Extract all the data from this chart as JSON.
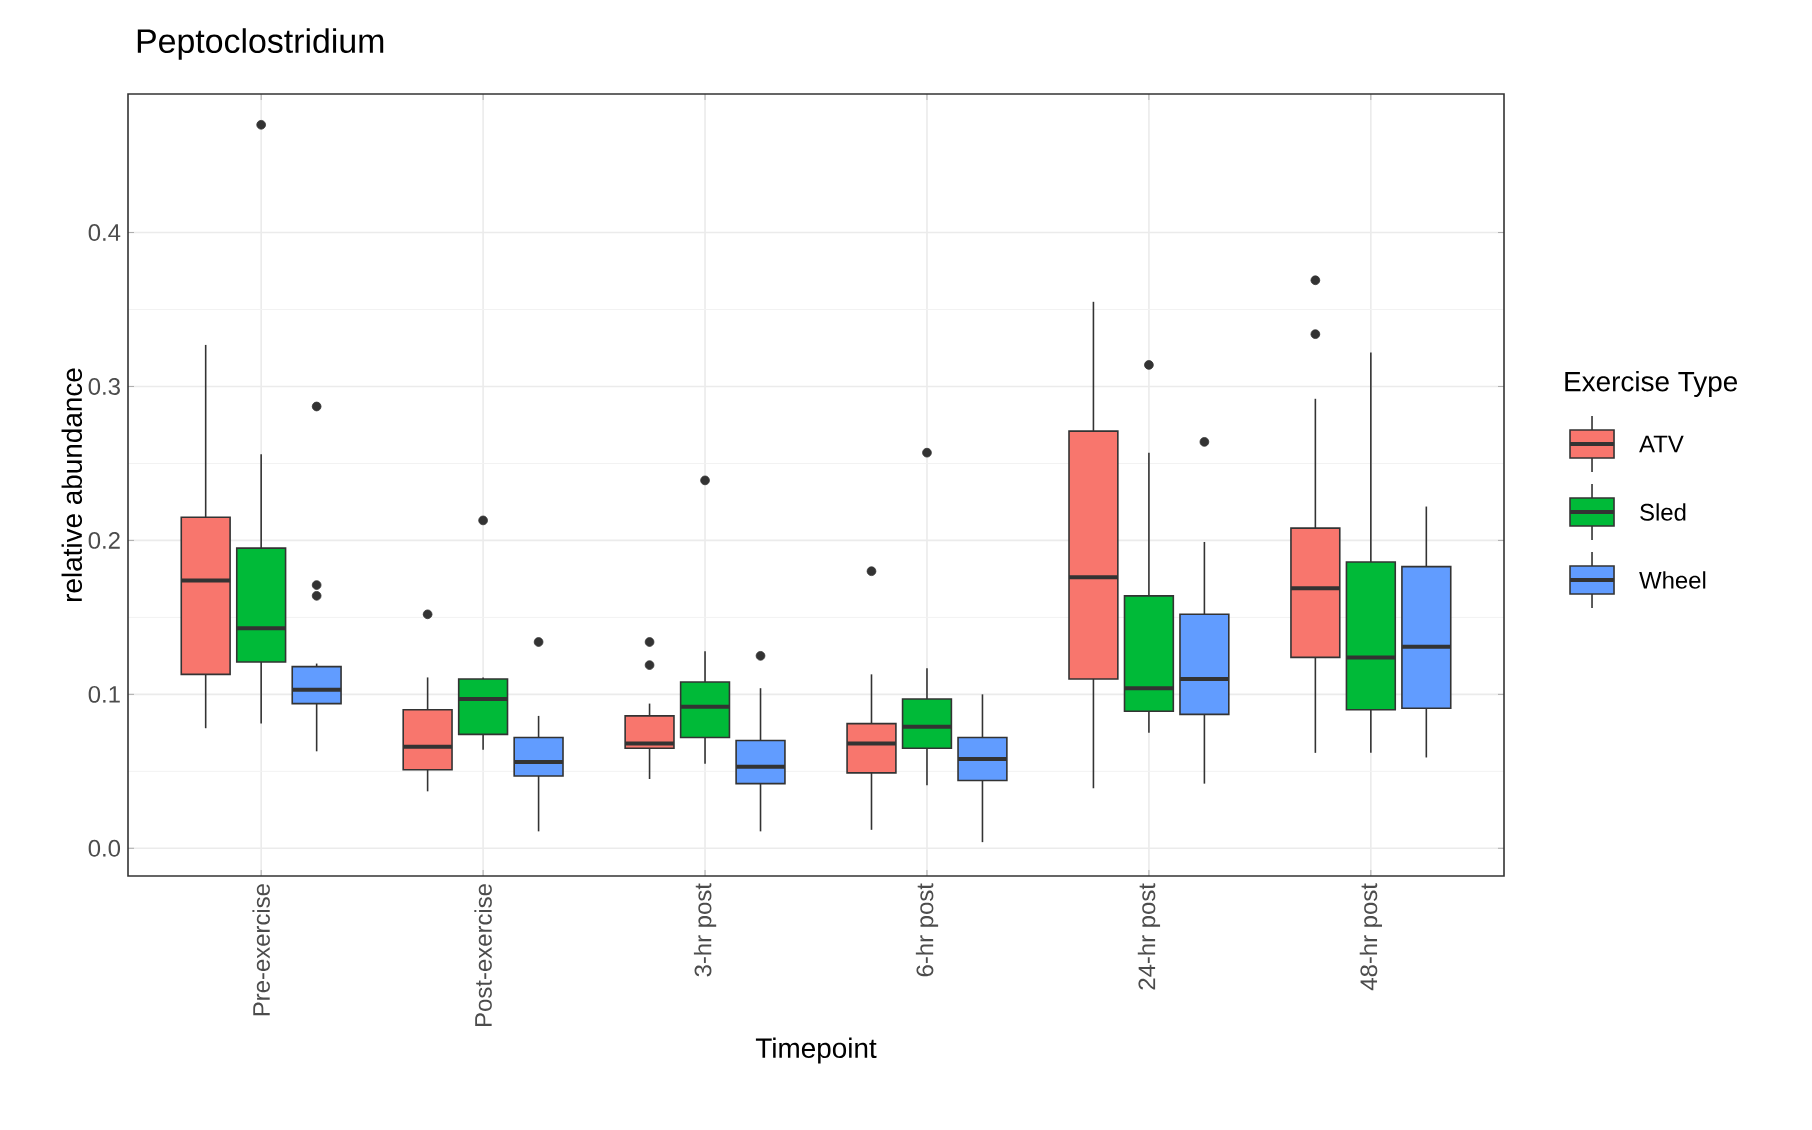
{
  "chart_data": {
    "type": "box",
    "title": "Peptoclostridium",
    "xlabel": "Timepoint",
    "ylabel": "relative abundance",
    "legend_title": "Exercise Type",
    "categories": [
      "Pre-exercise",
      "Post-exercise",
      "3-hr post",
      "6-hr post",
      "24-hr post",
      "48-hr post"
    ],
    "ylim": [
      -0.018,
      0.49
    ],
    "yticks": [
      {
        "value": 0,
        "label": "0.0"
      },
      {
        "value": 0.1,
        "label": "0.1"
      },
      {
        "value": 0.2,
        "label": "0.2"
      },
      {
        "value": 0.3,
        "label": "0.3"
      },
      {
        "value": 0.4,
        "label": "0.4"
      }
    ],
    "grid": true,
    "legend": "right",
    "series": [
      {
        "name": "ATV",
        "color": "#f8766d",
        "boxes": [
          {
            "low": 0.078,
            "q1": 0.113,
            "median": 0.174,
            "q3": 0.215,
            "high": 0.327
          },
          {
            "low": 0.037,
            "q1": 0.051,
            "median": 0.066,
            "q3": 0.09,
            "high": 0.111,
            "outliers": [
              0.152
            ]
          },
          {
            "low": 0.045,
            "q1": 0.065,
            "median": 0.068,
            "q3": 0.086,
            "high": 0.094,
            "outliers": [
              0.134,
              0.119
            ]
          },
          {
            "low": 0.012,
            "q1": 0.049,
            "median": 0.068,
            "q3": 0.081,
            "high": 0.113,
            "outliers": [
              0.18
            ]
          },
          {
            "low": 0.039,
            "q1": 0.11,
            "median": 0.176,
            "q3": 0.271,
            "high": 0.355
          },
          {
            "low": 0.062,
            "q1": 0.124,
            "median": 0.169,
            "q3": 0.208,
            "high": 0.292,
            "outliers": [
              0.369,
              0.334
            ]
          }
        ]
      },
      {
        "name": "Sled",
        "color": "#00ba38",
        "boxes": [
          {
            "low": 0.081,
            "q1": 0.121,
            "median": 0.143,
            "q3": 0.195,
            "high": 0.256,
            "outliers": [
              0.47
            ]
          },
          {
            "low": 0.064,
            "q1": 0.074,
            "median": 0.097,
            "q3": 0.11,
            "high": 0.111,
            "outliers": [
              0.213
            ]
          },
          {
            "low": 0.055,
            "q1": 0.072,
            "median": 0.092,
            "q3": 0.108,
            "high": 0.128,
            "outliers": [
              0.239
            ]
          },
          {
            "low": 0.041,
            "q1": 0.065,
            "median": 0.079,
            "q3": 0.097,
            "high": 0.117,
            "outliers": [
              0.257
            ]
          },
          {
            "low": 0.075,
            "q1": 0.089,
            "median": 0.104,
            "q3": 0.164,
            "high": 0.257,
            "outliers": [
              0.314
            ]
          },
          {
            "low": 0.062,
            "q1": 0.09,
            "median": 0.124,
            "q3": 0.186,
            "high": 0.322
          }
        ]
      },
      {
        "name": "Wheel",
        "color": "#619cff",
        "boxes": [
          {
            "low": 0.063,
            "q1": 0.094,
            "median": 0.103,
            "q3": 0.118,
            "high": 0.12,
            "outliers": [
              0.287,
              0.171,
              0.164
            ]
          },
          {
            "low": 0.011,
            "q1": 0.047,
            "median": 0.056,
            "q3": 0.072,
            "high": 0.086,
            "outliers": [
              0.134
            ]
          },
          {
            "low": 0.011,
            "q1": 0.042,
            "median": 0.053,
            "q3": 0.07,
            "high": 0.104,
            "outliers": [
              0.125
            ]
          },
          {
            "low": 0.004,
            "q1": 0.044,
            "median": 0.058,
            "q3": 0.072,
            "high": 0.1
          },
          {
            "low": 0.042,
            "q1": 0.087,
            "median": 0.11,
            "q3": 0.152,
            "high": 0.199,
            "outliers": [
              0.264
            ]
          },
          {
            "low": 0.059,
            "q1": 0.091,
            "median": 0.131,
            "q3": 0.183,
            "high": 0.222
          }
        ]
      }
    ]
  }
}
